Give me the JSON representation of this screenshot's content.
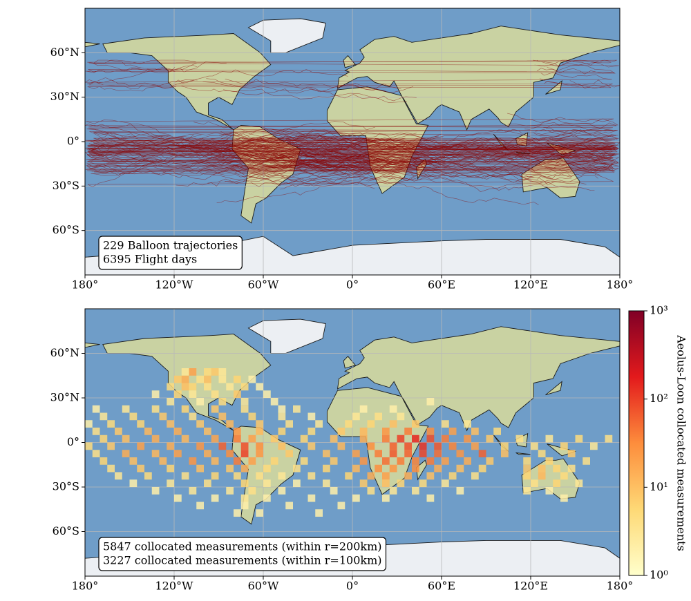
{
  "chart_data": [
    {
      "type": "trajectory-map",
      "annotation": [
        "229 Balloon trajectories",
        "6395 Flight days"
      ],
      "xlim": [
        -180,
        180
      ],
      "ylim": [
        -90,
        90
      ],
      "xticks": [
        {
          "value": -180,
          "label": "180°"
        },
        {
          "value": -120,
          "label": "120°W"
        },
        {
          "value": -60,
          "label": "60°W"
        },
        {
          "value": 0,
          "label": "0°"
        },
        {
          "value": 60,
          "label": "60°E"
        },
        {
          "value": 120,
          "label": "120°E"
        },
        {
          "value": 180,
          "label": "180°"
        }
      ],
      "yticks": [
        {
          "value": 60,
          "label": "60°N"
        },
        {
          "value": 30,
          "label": "30°N"
        },
        {
          "value": 0,
          "label": "0°"
        },
        {
          "value": -30,
          "label": "30°S"
        },
        {
          "value": -60,
          "label": "60°S"
        }
      ],
      "grid": true,
      "color": "#8b0000"
    },
    {
      "type": "heatmap",
      "annotation": [
        "5847 collocated measurements (within r=200km)",
        "3227 collocated measurements (within r=100km)"
      ],
      "xlim": [
        -180,
        180
      ],
      "ylim": [
        -90,
        90
      ],
      "xticks": [
        {
          "value": -180,
          "label": "180°"
        },
        {
          "value": -120,
          "label": "120°W"
        },
        {
          "value": -60,
          "label": "60°W"
        },
        {
          "value": 0,
          "label": "0°"
        },
        {
          "value": 60,
          "label": "60°E"
        },
        {
          "value": 120,
          "label": "120°E"
        },
        {
          "value": 180,
          "label": "180°"
        }
      ],
      "yticks": [
        {
          "value": 60,
          "label": "60°N"
        },
        {
          "value": 30,
          "label": "30°N"
        },
        {
          "value": 0,
          "label": "0°"
        },
        {
          "value": -30,
          "label": "30°S"
        },
        {
          "value": -60,
          "label": "60°S"
        }
      ],
      "grid": true,
      "colorbar": {
        "label": "Aeolus-Loon collocated measurements",
        "lim": [
          1,
          1000
        ],
        "log": true,
        "ticks": [
          {
            "value": 1,
            "label": "10⁰"
          },
          {
            "value": 10,
            "label": "10¹"
          },
          {
            "value": 100,
            "label": "10²"
          },
          {
            "value": 1000,
            "label": "10³"
          }
        ],
        "colormap": [
          "#ffffcc",
          "#fed976",
          "#fd8d3c",
          "#e31a1c",
          "#800026"
        ]
      },
      "cells": [
        [
          -112.5,
          47.5,
          3
        ],
        [
          -107.5,
          47.5,
          20
        ],
        [
          -97.5,
          47.5,
          5
        ],
        [
          -92.5,
          47.5,
          8
        ],
        [
          -87.5,
          47.5,
          3
        ],
        [
          -117.5,
          42.5,
          8
        ],
        [
          -112.5,
          42.5,
          15
        ],
        [
          -102.5,
          42.5,
          4
        ],
        [
          -97.5,
          42.5,
          10
        ],
        [
          -87.5,
          42.5,
          3
        ],
        [
          -77.5,
          42.5,
          6
        ],
        [
          -67.5,
          42.5,
          2
        ],
        [
          -122.5,
          37.5,
          5
        ],
        [
          -112.5,
          37.5,
          10
        ],
        [
          -107.5,
          37.5,
          6
        ],
        [
          -97.5,
          37.5,
          4
        ],
        [
          -82.5,
          37.5,
          3
        ],
        [
          -72.5,
          37.5,
          5
        ],
        [
          -62.5,
          37.5,
          2
        ],
        [
          -132.5,
          32.5,
          2
        ],
        [
          -117.5,
          32.5,
          6
        ],
        [
          -107.5,
          32.5,
          3
        ],
        [
          -92.5,
          32.5,
          4
        ],
        [
          -77.5,
          32.5,
          8
        ],
        [
          -57.5,
          32.5,
          2
        ],
        [
          -122.5,
          27.5,
          3
        ],
        [
          -102.5,
          27.5,
          2
        ],
        [
          -87.5,
          27.5,
          5
        ],
        [
          -72.5,
          27.5,
          3
        ],
        [
          -52.5,
          27.5,
          2
        ],
        [
          52.5,
          27.5,
          2
        ],
        [
          -172.5,
          22.5,
          2
        ],
        [
          -152.5,
          22.5,
          3
        ],
        [
          -132.5,
          22.5,
          4
        ],
        [
          -112.5,
          22.5,
          6
        ],
        [
          -92.5,
          22.5,
          8
        ],
        [
          -72.5,
          22.5,
          4
        ],
        [
          -47.5,
          22.5,
          2
        ],
        [
          -37.5,
          22.5,
          3
        ],
        [
          7.5,
          22.5,
          2
        ],
        [
          27.5,
          22.5,
          2
        ],
        [
          -167.5,
          17.5,
          3
        ],
        [
          -147.5,
          17.5,
          5
        ],
        [
          -127.5,
          17.5,
          8
        ],
        [
          -107.5,
          17.5,
          4
        ],
        [
          -87.5,
          17.5,
          10
        ],
        [
          -67.5,
          17.5,
          6
        ],
        [
          -47.5,
          17.5,
          3
        ],
        [
          -27.5,
          17.5,
          2
        ],
        [
          2.5,
          17.5,
          3
        ],
        [
          17.5,
          17.5,
          4
        ],
        [
          32.5,
          17.5,
          3
        ],
        [
          -177.5,
          12.5,
          2
        ],
        [
          -162.5,
          12.5,
          5
        ],
        [
          -142.5,
          12.5,
          6
        ],
        [
          -122.5,
          12.5,
          10
        ],
        [
          -102.5,
          12.5,
          8
        ],
        [
          -82.5,
          12.5,
          12
        ],
        [
          -62.5,
          12.5,
          8
        ],
        [
          -42.5,
          12.5,
          4
        ],
        [
          -22.5,
          12.5,
          3
        ],
        [
          -2.5,
          12.5,
          5
        ],
        [
          12.5,
          12.5,
          6
        ],
        [
          27.5,
          12.5,
          10
        ],
        [
          42.5,
          12.5,
          8
        ],
        [
          62.5,
          12.5,
          4
        ],
        [
          77.5,
          12.5,
          3
        ],
        [
          -172.5,
          7.5,
          4
        ],
        [
          -157.5,
          7.5,
          8
        ],
        [
          -137.5,
          7.5,
          12
        ],
        [
          -117.5,
          7.5,
          15
        ],
        [
          -97.5,
          7.5,
          10
        ],
        [
          -77.5,
          7.5,
          25
        ],
        [
          -62.5,
          7.5,
          12
        ],
        [
          -47.5,
          7.5,
          6
        ],
        [
          -27.5,
          7.5,
          5
        ],
        [
          -7.5,
          7.5,
          8
        ],
        [
          7.5,
          7.5,
          12
        ],
        [
          22.5,
          7.5,
          25
        ],
        [
          37.5,
          7.5,
          40
        ],
        [
          52.5,
          7.5,
          30
        ],
        [
          67.5,
          7.5,
          20
        ],
        [
          82.5,
          7.5,
          10
        ],
        [
          97.5,
          7.5,
          5
        ],
        [
          -167.5,
          2.5,
          6
        ],
        [
          -152.5,
          2.5,
          10
        ],
        [
          -132.5,
          2.5,
          15
        ],
        [
          -112.5,
          2.5,
          12
        ],
        [
          -92.5,
          2.5,
          18
        ],
        [
          -77.5,
          2.5,
          40
        ],
        [
          -67.5,
          2.5,
          20
        ],
        [
          -52.5,
          2.5,
          8
        ],
        [
          -32.5,
          2.5,
          6
        ],
        [
          -12.5,
          2.5,
          10
        ],
        [
          7.5,
          2.5,
          15
        ],
        [
          22.5,
          2.5,
          40
        ],
        [
          32.5,
          2.5,
          100
        ],
        [
          42.5,
          2.5,
          150
        ],
        [
          52.5,
          2.5,
          80
        ],
        [
          62.5,
          2.5,
          40
        ],
        [
          77.5,
          2.5,
          25
        ],
        [
          92.5,
          2.5,
          8
        ],
        [
          112.5,
          2.5,
          4
        ],
        [
          132.5,
          2.5,
          3
        ],
        [
          152.5,
          2.5,
          5
        ],
        [
          172.5,
          2.5,
          4
        ],
        [
          -177.5,
          -2.5,
          5
        ],
        [
          -162.5,
          -2.5,
          8
        ],
        [
          -142.5,
          -2.5,
          20
        ],
        [
          -122.5,
          -2.5,
          15
        ],
        [
          -102.5,
          -2.5,
          25
        ],
        [
          -87.5,
          -2.5,
          60
        ],
        [
          -72.5,
          -2.5,
          80
        ],
        [
          -62.5,
          -2.5,
          30
        ],
        [
          -47.5,
          -2.5,
          10
        ],
        [
          -27.5,
          -2.5,
          8
        ],
        [
          -7.5,
          -2.5,
          12
        ],
        [
          12.5,
          -2.5,
          30
        ],
        [
          27.5,
          -2.5,
          60
        ],
        [
          37.5,
          -2.5,
          80
        ],
        [
          47.5,
          -2.5,
          120
        ],
        [
          57.5,
          -2.5,
          70
        ],
        [
          67.5,
          -2.5,
          35
        ],
        [
          82.5,
          -2.5,
          20
        ],
        [
          102.5,
          -2.5,
          6
        ],
        [
          122.5,
          -2.5,
          4
        ],
        [
          142.5,
          -2.5,
          6
        ],
        [
          162.5,
          -2.5,
          3
        ],
        [
          -172.5,
          -7.5,
          4
        ],
        [
          -152.5,
          -7.5,
          15
        ],
        [
          -132.5,
          -7.5,
          12
        ],
        [
          -117.5,
          -7.5,
          20
        ],
        [
          -97.5,
          -7.5,
          15
        ],
        [
          -82.5,
          -7.5,
          30
        ],
        [
          -72.5,
          -7.5,
          100
        ],
        [
          -62.5,
          -7.5,
          25
        ],
        [
          -42.5,
          -7.5,
          8
        ],
        [
          -17.5,
          -7.5,
          10
        ],
        [
          2.5,
          -7.5,
          20
        ],
        [
          17.5,
          -7.5,
          40
        ],
        [
          27.5,
          -7.5,
          70
        ],
        [
          37.5,
          -7.5,
          60
        ],
        [
          47.5,
          -7.5,
          90
        ],
        [
          57.5,
          -7.5,
          50
        ],
        [
          72.5,
          -7.5,
          25
        ],
        [
          87.5,
          -7.5,
          60
        ],
        [
          102.5,
          -7.5,
          10
        ],
        [
          127.5,
          -7.5,
          5
        ],
        [
          147.5,
          -7.5,
          8
        ],
        [
          -167.5,
          -12.5,
          6
        ],
        [
          -147.5,
          -12.5,
          10
        ],
        [
          -127.5,
          -12.5,
          12
        ],
        [
          -107.5,
          -12.5,
          25
        ],
        [
          -92.5,
          -12.5,
          12
        ],
        [
          -77.5,
          -12.5,
          40
        ],
        [
          -67.5,
          -12.5,
          20
        ],
        [
          -52.5,
          -12.5,
          6
        ],
        [
          -32.5,
          -12.5,
          5
        ],
        [
          -12.5,
          -12.5,
          8
        ],
        [
          7.5,
          -12.5,
          25
        ],
        [
          22.5,
          -12.5,
          50
        ],
        [
          32.5,
          -12.5,
          40
        ],
        [
          42.5,
          -12.5,
          35
        ],
        [
          52.5,
          -12.5,
          40
        ],
        [
          62.5,
          -12.5,
          20
        ],
        [
          77.5,
          -12.5,
          15
        ],
        [
          92.5,
          -12.5,
          8
        ],
        [
          117.5,
          -12.5,
          5
        ],
        [
          132.5,
          -12.5,
          6
        ],
        [
          157.5,
          -12.5,
          4
        ],
        [
          -162.5,
          -17.5,
          4
        ],
        [
          -142.5,
          -17.5,
          8
        ],
        [
          -122.5,
          -17.5,
          6
        ],
        [
          -102.5,
          -17.5,
          10
        ],
        [
          -82.5,
          -17.5,
          8
        ],
        [
          -72.5,
          -17.5,
          15
        ],
        [
          -57.5,
          -17.5,
          5
        ],
        [
          -37.5,
          -17.5,
          4
        ],
        [
          -17.5,
          -17.5,
          6
        ],
        [
          2.5,
          -17.5,
          12
        ],
        [
          17.5,
          -17.5,
          30
        ],
        [
          27.5,
          -17.5,
          25
        ],
        [
          42.5,
          -17.5,
          30
        ],
        [
          57.5,
          -17.5,
          15
        ],
        [
          72.5,
          -17.5,
          10
        ],
        [
          87.5,
          -17.5,
          6
        ],
        [
          117.5,
          -17.5,
          8
        ],
        [
          127.5,
          -17.5,
          10
        ],
        [
          137.5,
          -17.5,
          6
        ],
        [
          147.5,
          -17.5,
          4
        ],
        [
          -157.5,
          -22.5,
          3
        ],
        [
          -137.5,
          -22.5,
          5
        ],
        [
          -112.5,
          -22.5,
          4
        ],
        [
          -92.5,
          -22.5,
          6
        ],
        [
          -77.5,
          -22.5,
          5
        ],
        [
          -62.5,
          -22.5,
          4
        ],
        [
          -47.5,
          -22.5,
          3
        ],
        [
          -27.5,
          -22.5,
          4
        ],
        [
          -2.5,
          -22.5,
          6
        ],
        [
          12.5,
          -22.5,
          15
        ],
        [
          22.5,
          -22.5,
          20
        ],
        [
          37.5,
          -22.5,
          15
        ],
        [
          52.5,
          -22.5,
          10
        ],
        [
          67.5,
          -22.5,
          6
        ],
        [
          82.5,
          -22.5,
          4
        ],
        [
          117.5,
          -22.5,
          6
        ],
        [
          127.5,
          -22.5,
          12
        ],
        [
          142.5,
          -22.5,
          5
        ],
        [
          -147.5,
          -27.5,
          2
        ],
        [
          -122.5,
          -27.5,
          3
        ],
        [
          -97.5,
          -27.5,
          4
        ],
        [
          -72.5,
          -27.5,
          6
        ],
        [
          -57.5,
          -27.5,
          3
        ],
        [
          -37.5,
          -27.5,
          2
        ],
        [
          -17.5,
          -27.5,
          3
        ],
        [
          7.5,
          -27.5,
          8
        ],
        [
          22.5,
          -27.5,
          10
        ],
        [
          32.5,
          -27.5,
          6
        ],
        [
          47.5,
          -27.5,
          5
        ],
        [
          62.5,
          -27.5,
          3
        ],
        [
          122.5,
          -27.5,
          4
        ],
        [
          137.5,
          -27.5,
          6
        ],
        [
          152.5,
          -27.5,
          3
        ],
        [
          -132.5,
          -32.5,
          2
        ],
        [
          -107.5,
          -32.5,
          3
        ],
        [
          -82.5,
          -32.5,
          3
        ],
        [
          -67.5,
          -32.5,
          4
        ],
        [
          -47.5,
          -32.5,
          2
        ],
        [
          -12.5,
          -32.5,
          2
        ],
        [
          12.5,
          -32.5,
          4
        ],
        [
          27.5,
          -32.5,
          3
        ],
        [
          42.5,
          -32.5,
          3
        ],
        [
          72.5,
          -32.5,
          2
        ],
        [
          117.5,
          -32.5,
          3
        ],
        [
          132.5,
          -32.5,
          2
        ],
        [
          -117.5,
          -37.5,
          2
        ],
        [
          -92.5,
          -37.5,
          2
        ],
        [
          -72.5,
          -37.5,
          3
        ],
        [
          -57.5,
          -37.5,
          2
        ],
        [
          -27.5,
          -37.5,
          2
        ],
        [
          2.5,
          -37.5,
          2
        ],
        [
          22.5,
          -37.5,
          2
        ],
        [
          52.5,
          -37.5,
          2
        ],
        [
          142.5,
          -37.5,
          2
        ],
        [
          -102.5,
          -42.5,
          2
        ],
        [
          -72.5,
          -42.5,
          2
        ],
        [
          -42.5,
          -42.5,
          2
        ],
        [
          -7.5,
          -42.5,
          2
        ],
        [
          -77.5,
          -47.5,
          2
        ],
        [
          -62.5,
          -47.5,
          2
        ],
        [
          -22.5,
          -47.5,
          2
        ]
      ]
    }
  ]
}
